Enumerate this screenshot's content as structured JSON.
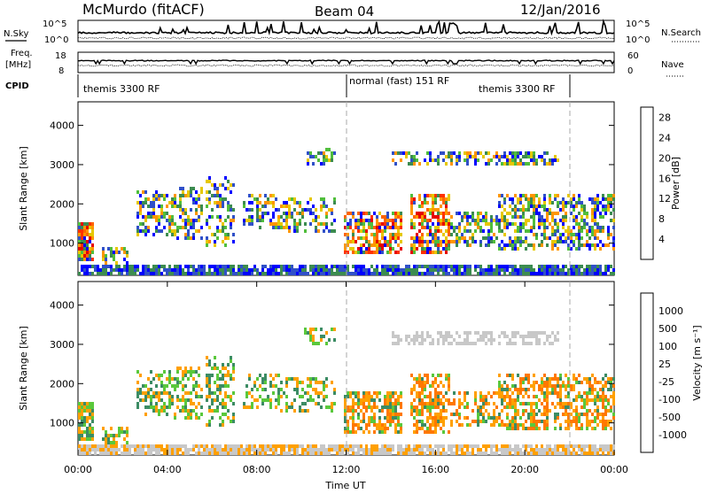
{
  "header": {
    "station": "McMurdo (fitACF)",
    "beam": "Beam 04",
    "date": "12/Jan/2016"
  },
  "params_panel": {
    "nsky_label": "N.Sky",
    "nsky_ticks": [
      "10^5",
      "10^0"
    ],
    "nsearch_label": "N.Search",
    "nsearch_ticks": [
      "10^5",
      "10^0"
    ],
    "freq_label": "Freq.",
    "freq_unit": "[MHz]",
    "freq_ticks": [
      "18",
      "8"
    ],
    "nave_label": "Nave",
    "nave_ticks": [
      "60",
      "0"
    ],
    "cpid_label": "CPID",
    "modes": [
      {
        "label": "themis 3300 RF",
        "start_hour": 0,
        "end_hour": 12
      },
      {
        "label": "normal (fast) 151 RF",
        "start_hour": 12,
        "end_hour": 22
      },
      {
        "label": "themis 3300 RF",
        "start_hour": 22,
        "end_hour": 24
      }
    ]
  },
  "colors": {
    "power_scale": [
      "#0000ff",
      "#3050c8",
      "#3c8c50",
      "#50be3c",
      "#e6c800",
      "#ff9600",
      "#ff6400",
      "#ff3200",
      "#e60000"
    ],
    "velocity_scale": [
      "#1e3cc8",
      "#2850a0",
      "#3c8c64",
      "#5ac83c",
      "#c8c8c8",
      "#c8c8c8",
      "#ffa000",
      "#ff7800",
      "#ff3c00",
      "#e60000"
    ]
  },
  "chart_data": [
    {
      "type": "heatmap",
      "name": "power",
      "ylabel": "Slant Range [km]",
      "ylim": [
        180,
        4600
      ],
      "xlim": [
        0,
        24
      ],
      "yticks": [
        "1000",
        "2000",
        "3000",
        "4000"
      ],
      "colorbar_label": "Power [dB]",
      "colorbar_ticks": [
        "4",
        "8",
        "12",
        "16",
        "20",
        "24",
        "28"
      ],
      "colorbar_range": [
        0,
        30
      ]
    },
    {
      "type": "heatmap",
      "name": "velocity",
      "ylabel": "Slant Range [km]",
      "ylim": [
        180,
        4600
      ],
      "xlim": [
        0,
        24
      ],
      "yticks": [
        "1000",
        "2000",
        "3000",
        "4000"
      ],
      "colorbar_label": "Velocity [m s⁻¹]",
      "colorbar_ticks": [
        "1000",
        "500",
        "100",
        "25",
        "-25",
        "-100",
        "-500",
        "-1000"
      ],
      "xlabel": "Time UT",
      "xticks": [
        "00:00",
        "04:00",
        "08:00",
        "12:00",
        "16:00",
        "20:00",
        "00:00"
      ]
    }
  ]
}
